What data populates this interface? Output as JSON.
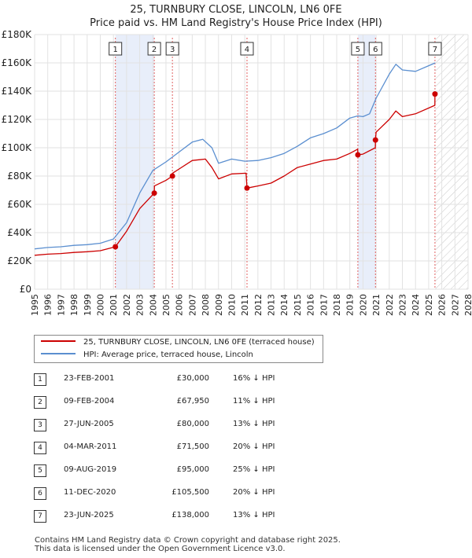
{
  "title_line1": "25, TURNBURY CLOSE, LINCOLN, LN6 0FE",
  "title_line2": "Price paid vs. HM Land Registry's House Price Index (HPI)",
  "legend": {
    "property": "25, TURNBURY CLOSE, LINCOLN, LN6 0FE (terraced house)",
    "hpi": "HPI: Average price, terraced house, Lincoln"
  },
  "colors": {
    "property": "#cc0000",
    "hpi": "#5b8fd0",
    "shade": "#e8eefa",
    "vline": "#e06060"
  },
  "sales": [
    {
      "num": "1",
      "date": "23-FEB-2001",
      "price": "£30,000",
      "hpi": "16% ↓ HPI"
    },
    {
      "num": "2",
      "date": "09-FEB-2004",
      "price": "£67,950",
      "hpi": "11% ↓ HPI"
    },
    {
      "num": "3",
      "date": "27-JUN-2005",
      "price": "£80,000",
      "hpi": "13% ↓ HPI"
    },
    {
      "num": "4",
      "date": "04-MAR-2011",
      "price": "£71,500",
      "hpi": "20% ↓ HPI"
    },
    {
      "num": "5",
      "date": "09-AUG-2019",
      "price": "£95,000",
      "hpi": "25% ↓ HPI"
    },
    {
      "num": "6",
      "date": "11-DEC-2020",
      "price": "£105,500",
      "hpi": "20% ↓ HPI"
    },
    {
      "num": "7",
      "date": "23-JUN-2025",
      "price": "£138,000",
      "hpi": "13% ↓ HPI"
    }
  ],
  "footer": {
    "line1": "Contains HM Land Registry data © Crown copyright and database right 2025.",
    "line2": "This data is licensed under the Open Government Licence v3.0."
  },
  "chart_data": {
    "type": "line",
    "title": "25, TURNBURY CLOSE, LINCOLN, LN6 0FE",
    "subtitle": "Price paid vs. HM Land Registry's House Price Index (HPI)",
    "xlabel": "",
    "ylabel": "",
    "xlim": [
      1995,
      2028
    ],
    "ylim": [
      0,
      180000
    ],
    "x_ticks": [
      1995,
      1996,
      1997,
      1998,
      1999,
      2000,
      2001,
      2002,
      2003,
      2004,
      2005,
      2006,
      2007,
      2008,
      2009,
      2010,
      2011,
      2012,
      2013,
      2014,
      2015,
      2016,
      2017,
      2018,
      2019,
      2020,
      2021,
      2022,
      2023,
      2024,
      2025,
      2026,
      2027,
      2028
    ],
    "y_ticks": [
      0,
      20000,
      40000,
      60000,
      80000,
      100000,
      120000,
      140000,
      160000,
      180000
    ],
    "y_tick_labels": [
      "£0",
      "£20K",
      "£40K",
      "£60K",
      "£80K",
      "£100K",
      "£120K",
      "£140K",
      "£160K",
      "£180K"
    ],
    "shaded_ranges": [
      [
        2001.15,
        2004.11
      ],
      [
        2019.61,
        2020.95
      ]
    ],
    "future_hatch_from": 2025.5,
    "sale_markers": [
      {
        "label": "1",
        "x": 2001.15,
        "y": 30000
      },
      {
        "label": "2",
        "x": 2004.11,
        "y": 67950
      },
      {
        "label": "3",
        "x": 2005.49,
        "y": 80000
      },
      {
        "label": "4",
        "x": 2011.17,
        "y": 71500
      },
      {
        "label": "5",
        "x": 2019.61,
        "y": 95000
      },
      {
        "label": "6",
        "x": 2020.95,
        "y": 105500
      },
      {
        "label": "7",
        "x": 2025.48,
        "y": 138000
      }
    ],
    "series": [
      {
        "name": "25, TURNBURY CLOSE, LINCOLN, LN6 0FE (terraced house)",
        "x": [
          1995,
          1996,
          1997,
          1998,
          1999,
          2000,
          2001.15,
          2002,
          2003,
          2004.11,
          2004.12,
          2005,
          2005.49,
          2005.5,
          2006,
          2007,
          2008,
          2008.5,
          2009,
          2010,
          2011.1,
          2011.17,
          2012,
          2013,
          2014,
          2015,
          2016,
          2017,
          2018,
          2019,
          2019.6,
          2019.61,
          2020,
          2020.94,
          2020.95,
          2021,
          2022,
          2022.5,
          2023,
          2024,
          2025.47,
          2025.48
        ],
        "y": [
          24000,
          24800,
          25200,
          26000,
          26500,
          27200,
          30000,
          41000,
          57000,
          67950,
          73000,
          77000,
          80000,
          82000,
          85000,
          91000,
          92000,
          86000,
          78000,
          81500,
          82000,
          71500,
          73000,
          75000,
          80000,
          86000,
          88500,
          91000,
          92000,
          96000,
          99000,
          95000,
          95500,
          100000,
          105500,
          111000,
          120000,
          126000,
          122000,
          124000,
          130000,
          138000
        ]
      },
      {
        "name": "HPI: Average price, terraced house, Lincoln",
        "x": [
          1995,
          1996,
          1997,
          1998,
          1999,
          2000,
          2001,
          2002,
          2003,
          2004,
          2005,
          2006,
          2007,
          2007.8,
          2008.5,
          2009,
          2010,
          2011,
          2012,
          2013,
          2014,
          2015,
          2016,
          2017,
          2018,
          2019,
          2019.6,
          2020,
          2020.5,
          2021,
          2022,
          2022.5,
          2023,
          2024,
          2025,
          2025.5
        ],
        "y": [
          28500,
          29500,
          30000,
          31000,
          31500,
          32500,
          35500,
          47000,
          68000,
          84000,
          90000,
          97000,
          104000,
          106000,
          100000,
          89000,
          92000,
          90500,
          91000,
          93000,
          96000,
          101000,
          107000,
          110000,
          114000,
          121000,
          122500,
          122000,
          124000,
          135000,
          152000,
          159000,
          155000,
          154000,
          158000,
          160000
        ]
      }
    ]
  }
}
